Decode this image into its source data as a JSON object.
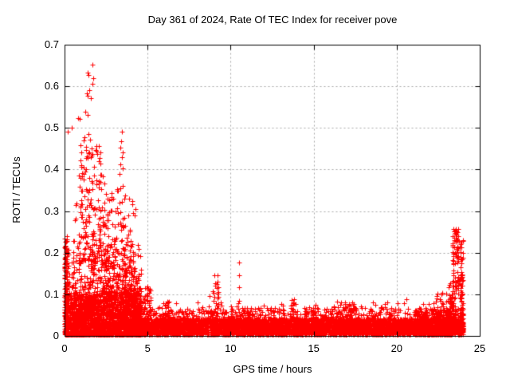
{
  "chart_data": {
    "type": "scatter",
    "title": "Day 361 of 2024, Rate Of TEC Index for receiver pove",
    "xlabel": "GPS time / hours",
    "ylabel": "ROTI / TECUs",
    "xlim": [
      0,
      25
    ],
    "ylim": [
      0,
      0.7
    ],
    "xtick_labels": [
      "0",
      "5",
      "10",
      "15",
      "20",
      "25"
    ],
    "ytick_labels": [
      "0",
      "0.1",
      "0.2",
      "0.3",
      "0.4",
      "0.5",
      "0.6",
      "0.7"
    ],
    "grid": true,
    "grid_style": "dashed",
    "grid_color": "#a8a8a8",
    "legend": "none",
    "marker": "plus",
    "marker_color": "#ff0000",
    "border_color": "#000000",
    "background_color": "#ffffff",
    "data_x_range": [
      0,
      24
    ],
    "max_value_approx": 0.66,
    "point_distribution": {
      "clusters": [
        {
          "x0": 0.0,
          "x1": 0.18,
          "n": 160,
          "y0": 0.0,
          "y1": 0.24,
          "pow": 1.6
        },
        {
          "x0": 0.0,
          "x1": 4.6,
          "n": 1500,
          "y0": 0.0,
          "y1": 0.105,
          "pow": 1.8
        },
        {
          "x0": 0.05,
          "x1": 4.6,
          "n": 650,
          "y0": 0.02,
          "y1": 0.22,
          "pow": 2.0
        },
        {
          "x0": 0.4,
          "x1": 4.3,
          "n": 260,
          "y0": 0.05,
          "y1": 0.33,
          "pow": 2.0
        },
        {
          "x0": 0.85,
          "x1": 2.25,
          "n": 120,
          "y0": 0.18,
          "y1": 0.46,
          "pow": 1.4
        },
        {
          "x0": 2.2,
          "x1": 3.05,
          "n": 50,
          "y0": 0.16,
          "y1": 0.36,
          "pow": 1.7
        },
        {
          "x0": 3.15,
          "x1": 3.7,
          "n": 60,
          "y0": 0.08,
          "y1": 0.4,
          "pow": 1.6
        },
        {
          "x0": 3.6,
          "x1": 4.6,
          "n": 150,
          "y0": 0.01,
          "y1": 0.17,
          "pow": 1.9
        },
        {
          "x0": 4.2,
          "x1": 5.2,
          "n": 160,
          "y0": 0.005,
          "y1": 0.115,
          "pow": 2.2
        },
        {
          "x0": 4.6,
          "x1": 24.0,
          "n": 3500,
          "y0": 0.001,
          "y1": 0.042,
          "pow": 1.1
        },
        {
          "x0": 4.6,
          "x1": 24.0,
          "n": 1300,
          "y0": 0.008,
          "y1": 0.068,
          "pow": 2.0
        },
        {
          "x0": 5.0,
          "x1": 24.0,
          "n": 420,
          "y0": 0.02,
          "y1": 0.082,
          "pow": 2.6
        },
        {
          "x0": 8.9,
          "x1": 9.35,
          "n": 26,
          "y0": 0.04,
          "y1": 0.148,
          "pow": 1.5
        },
        {
          "x0": 6.05,
          "x1": 6.4,
          "n": 14,
          "y0": 0.03,
          "y1": 0.085,
          "pow": 1.5
        },
        {
          "x0": 13.55,
          "x1": 13.95,
          "n": 20,
          "y0": 0.03,
          "y1": 0.09,
          "pow": 1.5
        },
        {
          "x0": 16.3,
          "x1": 17.6,
          "n": 70,
          "y0": 0.02,
          "y1": 0.085,
          "pow": 2.0
        },
        {
          "x0": 21.0,
          "x1": 23.3,
          "n": 240,
          "y0": 0.004,
          "y1": 0.068,
          "pow": 1.7
        },
        {
          "x0": 22.2,
          "x1": 23.35,
          "n": 70,
          "y0": 0.02,
          "y1": 0.105,
          "pow": 2.0
        },
        {
          "x0": 23.35,
          "x1": 23.78,
          "n": 72,
          "y0": 0.1,
          "y1": 0.258,
          "pow": -1.6
        },
        {
          "x0": 23.82,
          "x1": 24.0,
          "n": 95,
          "y0": 0.01,
          "y1": 0.235,
          "pow": 1.4
        },
        {
          "x0": 23.1,
          "x1": 23.6,
          "n": 50,
          "y0": 0.04,
          "y1": 0.13,
          "pow": 1.6
        }
      ],
      "outliers": [
        [
          0.19,
          0.491
        ],
        [
          0.43,
          0.5
        ],
        [
          0.82,
          0.524
        ],
        [
          0.91,
          0.522
        ],
        [
          1.25,
          0.539
        ],
        [
          1.39,
          0.531
        ],
        [
          1.68,
          0.652
        ],
        [
          1.39,
          0.632
        ],
        [
          1.42,
          0.627
        ],
        [
          1.73,
          0.619
        ],
        [
          1.67,
          0.606
        ],
        [
          1.49,
          0.591
        ],
        [
          1.33,
          0.583
        ],
        [
          1.38,
          0.578
        ],
        [
          1.58,
          0.571
        ],
        [
          0.95,
          0.421
        ],
        [
          1.0,
          0.406
        ],
        [
          1.05,
          0.392
        ],
        [
          0.88,
          0.385
        ],
        [
          1.15,
          0.469
        ],
        [
          1.22,
          0.478
        ],
        [
          1.3,
          0.455
        ],
        [
          1.45,
          0.486
        ],
        [
          1.5,
          0.441
        ],
        [
          1.55,
          0.472
        ],
        [
          1.62,
          0.451
        ],
        [
          1.7,
          0.437
        ],
        [
          1.35,
          0.431
        ],
        [
          1.28,
          0.446
        ],
        [
          2.28,
          0.383
        ],
        [
          2.42,
          0.366
        ],
        [
          2.5,
          0.341
        ],
        [
          2.2,
          0.352
        ],
        [
          2.6,
          0.33
        ],
        [
          3.46,
          0.491
        ],
        [
          3.4,
          0.468
        ],
        [
          3.35,
          0.452
        ],
        [
          3.52,
          0.441
        ],
        [
          3.44,
          0.43
        ],
        [
          3.38,
          0.412
        ],
        [
          3.5,
          0.402
        ],
        [
          3.3,
          0.39
        ],
        [
          0.05,
          0.215
        ],
        [
          0.03,
          0.185
        ],
        [
          9.2,
          0.145
        ],
        [
          9.21,
          0.131
        ],
        [
          9.18,
          0.116
        ],
        [
          9.23,
          0.102
        ],
        [
          8.72,
          0.096
        ],
        [
          10.5,
          0.176
        ],
        [
          10.5,
          0.145
        ],
        [
          10.51,
          0.117
        ],
        [
          10.49,
          0.085
        ],
        [
          13.8,
          0.088
        ],
        [
          18.7,
          0.075
        ],
        [
          20.6,
          0.088
        ],
        [
          6.2,
          0.082
        ],
        [
          23.55,
          0.257
        ],
        [
          23.6,
          0.251
        ],
        [
          16.9,
          0.08
        ],
        [
          12.0,
          0.072
        ],
        [
          15.2,
          0.068
        ],
        [
          19.1,
          0.07
        ],
        [
          22.35,
          0.083
        ],
        [
          4.3,
          0.128
        ],
        [
          5.0,
          0.118
        ]
      ]
    }
  }
}
